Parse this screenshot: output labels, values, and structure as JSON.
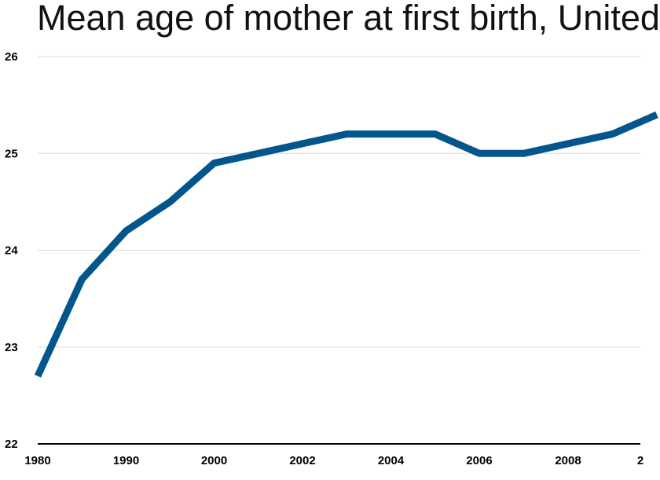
{
  "chart_data": {
    "type": "line",
    "title": "Mean age of mother at first birth, United",
    "xlabel": "",
    "ylabel": "",
    "ylim": [
      22,
      26
    ],
    "y_ticks": [
      "22",
      "23",
      "24",
      "25",
      "26"
    ],
    "x_ticks": [
      "1980",
      "1990",
      "2000",
      "2002",
      "2004",
      "2006",
      "2008",
      "2"
    ],
    "grid": true,
    "legend": "none",
    "colors": {
      "line": "#03568b"
    },
    "series": [
      {
        "x": [
          "1980",
          "1985",
          "1990",
          "1995",
          "2000",
          "2001",
          "2002",
          "2003",
          "2004",
          "2005",
          "2006",
          "2007",
          "2008",
          "2009",
          "2010"
        ],
        "values": [
          22.7,
          23.7,
          24.2,
          24.5,
          24.9,
          25.0,
          25.1,
          25.2,
          25.2,
          25.2,
          25.0,
          25.0,
          25.1,
          25.2,
          25.4
        ]
      }
    ]
  }
}
